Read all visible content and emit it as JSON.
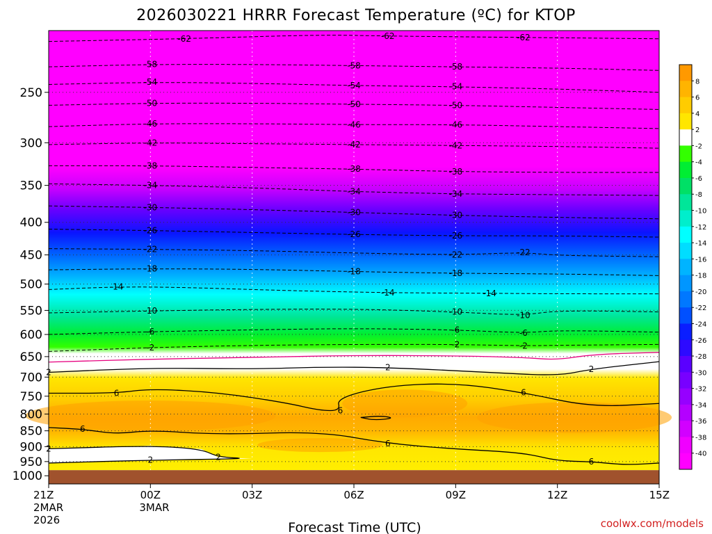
{
  "chart_data": {
    "type": "heatmap",
    "title": "2026030221 HRRR Forecast Temperature (ºC) for KTOP",
    "xlabel": "Forecast Time (UTC)",
    "ylabel": "",
    "credit": "coolwx.com/models",
    "x_ticks": [
      {
        "label": "21Z",
        "sub1": "2MAR",
        "sub2": "2026",
        "hour": 0
      },
      {
        "label": "00Z",
        "sub1": "3MAR",
        "sub2": "",
        "hour": 3
      },
      {
        "label": "03Z",
        "sub1": "",
        "sub2": "",
        "hour": 6
      },
      {
        "label": "06Z",
        "sub1": "",
        "sub2": "",
        "hour": 9
      },
      {
        "label": "09Z",
        "sub1": "",
        "sub2": "",
        "hour": 12
      },
      {
        "label": "12Z",
        "sub1": "",
        "sub2": "",
        "hour": 15
      },
      {
        "label": "15Z",
        "sub1": "",
        "sub2": "",
        "hour": 18
      }
    ],
    "xlim": [
      0,
      18
    ],
    "y_ticks": [
      250,
      300,
      350,
      400,
      450,
      500,
      550,
      600,
      650,
      700,
      750,
      800,
      850,
      900,
      950,
      1000
    ],
    "ylim": [
      200,
      1030
    ],
    "y_scale": "log",
    "surface_pressure_hpa": 980,
    "colorbar": {
      "ticks": [
        "8",
        "6",
        "4",
        "2",
        "-2",
        "-4",
        "-6",
        "-8",
        "-10",
        "-12",
        "-14",
        "-16",
        "-18",
        "-20",
        "-22",
        "-24",
        "-26",
        "-28",
        "-30",
        "-32",
        "-34",
        "-36",
        "-38",
        "-40"
      ],
      "colors": [
        "#ff9900",
        "#ffb400",
        "#ffcc00",
        "#ffe600",
        "#ffffff",
        "#33ff00",
        "#00ee33",
        "#00e066",
        "#00e699",
        "#00eecc",
        "#00ffff",
        "#00ddff",
        "#00b4ff",
        "#0096ff",
        "#0078ff",
        "#0050ff",
        "#0a1eff",
        "#2d0aff",
        "#5a00ff",
        "#7800ff",
        "#9600ff",
        "#b400ff",
        "#d200ff",
        "#f000ff",
        "#ff00ff"
      ]
    },
    "contours": [
      {
        "value": -62,
        "label": "-62",
        "dashed": true,
        "points": [
          [
            0,
            208
          ],
          [
            4,
            206
          ],
          [
            8,
            203
          ],
          [
            10,
            204
          ],
          [
            14,
            205
          ],
          [
            18,
            206
          ]
        ]
      },
      {
        "value": -58,
        "label": "-58",
        "dashed": true,
        "points": [
          [
            0,
            228
          ],
          [
            3,
            226
          ],
          [
            6,
            226
          ],
          [
            9,
            227
          ],
          [
            12,
            228
          ],
          [
            15,
            229
          ],
          [
            18,
            231
          ]
        ]
      },
      {
        "value": -54,
        "label": "-54",
        "dashed": true,
        "points": [
          [
            0,
            243
          ],
          [
            3,
            241
          ],
          [
            6,
            242
          ],
          [
            9,
            244
          ],
          [
            12,
            245
          ],
          [
            15,
            247
          ],
          [
            18,
            250
          ]
        ]
      },
      {
        "value": -50,
        "label": "-50",
        "dashed": true,
        "points": [
          [
            0,
            262
          ],
          [
            3,
            260
          ],
          [
            6,
            260
          ],
          [
            9,
            261
          ],
          [
            12,
            262
          ],
          [
            15,
            264
          ],
          [
            18,
            266
          ]
        ]
      },
      {
        "value": -46,
        "label": "-46",
        "dashed": true,
        "points": [
          [
            0,
            283
          ],
          [
            3,
            280
          ],
          [
            6,
            280
          ],
          [
            9,
            281
          ],
          [
            12,
            281
          ],
          [
            15,
            283
          ],
          [
            18,
            285
          ]
        ]
      },
      {
        "value": -42,
        "label": "-42",
        "dashed": true,
        "points": [
          [
            0,
            302
          ],
          [
            3,
            300
          ],
          [
            6,
            301
          ],
          [
            9,
            302
          ],
          [
            12,
            303
          ],
          [
            15,
            304
          ],
          [
            18,
            306
          ]
        ]
      },
      {
        "value": -38,
        "label": "-38",
        "dashed": true,
        "points": [
          [
            0,
            326
          ],
          [
            3,
            326
          ],
          [
            6,
            328
          ],
          [
            9,
            330
          ],
          [
            12,
            333
          ],
          [
            15,
            334
          ],
          [
            18,
            334
          ]
        ]
      },
      {
        "value": -34,
        "label": "-34",
        "dashed": true,
        "points": [
          [
            0,
            348
          ],
          [
            3,
            350
          ],
          [
            6,
            353
          ],
          [
            9,
            358
          ],
          [
            12,
            361
          ],
          [
            15,
            362
          ],
          [
            18,
            363
          ]
        ]
      },
      {
        "value": -30,
        "label": "-30",
        "dashed": true,
        "points": [
          [
            0,
            377
          ],
          [
            3,
            379
          ],
          [
            6,
            382
          ],
          [
            9,
            386
          ],
          [
            12,
            390
          ],
          [
            15,
            393
          ],
          [
            18,
            395
          ]
        ]
      },
      {
        "value": -26,
        "label": "-26",
        "dashed": true,
        "points": [
          [
            0,
            410
          ],
          [
            3,
            412
          ],
          [
            6,
            415
          ],
          [
            9,
            418
          ],
          [
            12,
            420
          ],
          [
            15,
            420
          ],
          [
            18,
            422
          ]
        ]
      },
      {
        "value": -22,
        "label": "-22",
        "dashed": true,
        "points": [
          [
            0,
            440
          ],
          [
            3,
            441
          ],
          [
            6,
            443
          ],
          [
            9,
            447
          ],
          [
            12,
            450
          ],
          [
            14,
            446
          ],
          [
            15,
            451
          ],
          [
            18,
            453
          ]
        ]
      },
      {
        "value": -18,
        "label": "-18",
        "dashed": true,
        "points": [
          [
            0,
            475
          ],
          [
            3,
            473
          ],
          [
            6,
            474
          ],
          [
            9,
            478
          ],
          [
            12,
            481
          ],
          [
            15,
            482
          ],
          [
            18,
            485
          ]
        ]
      },
      {
        "value": -14,
        "label": "-14",
        "dashed": true,
        "points": [
          [
            0,
            510
          ],
          [
            2,
            505
          ],
          [
            4,
            506
          ],
          [
            7,
            512
          ],
          [
            10,
            516
          ],
          [
            13,
            517
          ],
          [
            15,
            518
          ],
          [
            18,
            518
          ]
        ]
      },
      {
        "value": -10,
        "label": "-10",
        "dashed": true,
        "points": [
          [
            0,
            555
          ],
          [
            3,
            551
          ],
          [
            6,
            548
          ],
          [
            9,
            547
          ],
          [
            12,
            553
          ],
          [
            14,
            560
          ],
          [
            15,
            550
          ],
          [
            18,
            553
          ]
        ]
      },
      {
        "value": -6,
        "label": "-6",
        "dashed": true,
        "points": [
          [
            0,
            600
          ],
          [
            3,
            594
          ],
          [
            6,
            590
          ],
          [
            9,
            587
          ],
          [
            12,
            590
          ],
          [
            14,
            597
          ],
          [
            15,
            591
          ],
          [
            18,
            595
          ]
        ]
      },
      {
        "value": -2,
        "label": "-2",
        "dashed": true,
        "points": [
          [
            0,
            638
          ],
          [
            3,
            629
          ],
          [
            6,
            624
          ],
          [
            9,
            622
          ],
          [
            12,
            622
          ],
          [
            14,
            625
          ],
          [
            15,
            624
          ],
          [
            18,
            622
          ]
        ]
      },
      {
        "value": 0,
        "label": "",
        "dashed": false,
        "magenta": true,
        "points": [
          [
            0,
            663
          ],
          [
            3,
            656
          ],
          [
            6,
            652
          ],
          [
            9,
            647
          ],
          [
            12,
            648
          ],
          [
            14,
            652
          ],
          [
            15,
            658
          ],
          [
            16,
            645
          ],
          [
            18,
            640
          ]
        ]
      },
      {
        "value": 2,
        "label": "2",
        "dashed": false,
        "points": [
          [
            0,
            688
          ],
          [
            3,
            677
          ],
          [
            6,
            680
          ],
          [
            8,
            675
          ],
          [
            10,
            676
          ],
          [
            13,
            688
          ],
          [
            15,
            697
          ],
          [
            16,
            680
          ],
          [
            18,
            662
          ]
        ]
      },
      {
        "value": 6,
        "label": "6",
        "dashed": false,
        "points": [
          [
            0,
            742
          ],
          [
            2,
            742
          ],
          [
            3,
            730
          ],
          [
            5,
            740
          ],
          [
            7,
            768
          ],
          [
            8,
            790
          ],
          [
            8.6,
            790
          ],
          [
            8.5,
            755
          ],
          [
            10,
            722
          ],
          [
            12,
            715
          ],
          [
            14,
            740
          ],
          [
            16,
            780
          ],
          [
            18,
            770
          ]
        ]
      },
      {
        "value": 6.1,
        "label": "6",
        "dashed": false,
        "points": [
          [
            0,
            840
          ],
          [
            1,
            845
          ],
          [
            2,
            860
          ],
          [
            3,
            848
          ],
          [
            5,
            862
          ],
          [
            8,
            852
          ],
          [
            10,
            890
          ],
          [
            12,
            908
          ],
          [
            14,
            920
          ],
          [
            15,
            948
          ],
          [
            16,
            950
          ],
          [
            17,
            962
          ],
          [
            18,
            955
          ]
        ]
      },
      {
        "value": 2.1,
        "label": "2",
        "dashed": false,
        "points": [
          [
            0,
            907
          ],
          [
            3,
            897
          ],
          [
            4.5,
            908
          ],
          [
            5,
            935
          ],
          [
            6,
            940
          ],
          [
            3,
            945
          ],
          [
            0,
            955
          ]
        ]
      },
      {
        "value": 6.2,
        "label": "",
        "dashed": false,
        "points": [
          [
            9.2,
            810
          ],
          [
            9.8,
            805
          ],
          [
            10.2,
            812
          ],
          [
            9.6,
            818
          ],
          [
            9.2,
            810
          ]
        ]
      }
    ]
  }
}
